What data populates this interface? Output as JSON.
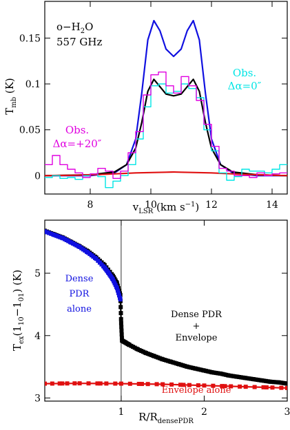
{
  "chart_data": [
    {
      "type": "line",
      "xlim": [
        6.5,
        14.5
      ],
      "ylim": [
        -0.02,
        0.19
      ],
      "xticks": [
        8,
        10,
        12,
        14
      ],
      "xtick_labels": [
        "8",
        "10",
        "12",
        "14"
      ],
      "yticks": [
        0,
        0.05,
        0.1,
        0.15
      ],
      "ytick_labels": [
        "0",
        "0.05",
        "0.1",
        "0.15"
      ],
      "xlabel": "v",
      "xlabel_sub": "LSR",
      "xlabel_unit": " (km s",
      "xlabel_unit_sup": "−1",
      "xlabel_close": ")",
      "ylabel": "T",
      "ylabel_sub": "mb",
      "ylabel_unit": " (K)",
      "annotation": {
        "line1": "o−H",
        "sub": "2",
        "line1_end": "O",
        "line2": "557 GHz"
      },
      "labels": {
        "obs0": {
          "line1": "Obs.",
          "line2": "Δα=0″",
          "color": "#00e5e5"
        },
        "obs20": {
          "line1": "Obs.",
          "line2": "Δα=+20″",
          "color": "#e000e0"
        }
      },
      "series": [
        {
          "color": "#1010e0",
          "x": [
            6.5,
            8,
            8.8,
            9.2,
            9.5,
            9.7,
            9.9,
            10.1,
            10.3,
            10.5,
            10.75,
            11.0,
            11.2,
            11.4,
            11.6,
            11.8,
            12.0,
            12.3,
            12.7,
            13.5,
            14.5
          ],
          "y": [
            0.0,
            0.0,
            0.003,
            0.012,
            0.04,
            0.09,
            0.148,
            0.169,
            0.158,
            0.138,
            0.13,
            0.138,
            0.158,
            0.169,
            0.148,
            0.09,
            0.04,
            0.012,
            0.003,
            0.0,
            0.0
          ]
        },
        {
          "color": "#000000",
          "x": [
            6.5,
            8,
            8.8,
            9.2,
            9.5,
            9.7,
            9.9,
            10.1,
            10.3,
            10.5,
            10.75,
            11.0,
            11.2,
            11.4,
            11.6,
            11.8,
            12.0,
            12.3,
            12.7,
            13.5,
            14.5
          ],
          "y": [
            0.0,
            0.001,
            0.004,
            0.012,
            0.03,
            0.058,
            0.092,
            0.105,
            0.097,
            0.089,
            0.087,
            0.089,
            0.097,
            0.105,
            0.092,
            0.058,
            0.03,
            0.012,
            0.004,
            0.001,
            0.0
          ]
        },
        {
          "color": "#e01010",
          "x": [
            6.5,
            7.5,
            8.5,
            9.5,
            10.5,
            10.75,
            11.0,
            12.0,
            13.0,
            14.0,
            14.5
          ],
          "y": [
            0.0,
            0.0005,
            0.0015,
            0.003,
            0.0038,
            0.004,
            0.0038,
            0.003,
            0.0015,
            0.0005,
            0.0
          ]
        },
        {
          "color": "#00e5e5",
          "step": true,
          "x": [
            6.5,
            6.75,
            7.0,
            7.25,
            7.5,
            7.75,
            8.0,
            8.25,
            8.5,
            8.75,
            9.0,
            9.25,
            9.5,
            9.75,
            10.0,
            10.25,
            10.5,
            10.75,
            11.0,
            11.25,
            11.5,
            11.75,
            12.0,
            12.25,
            12.5,
            12.75,
            13.0,
            13.25,
            13.5,
            13.75,
            14.0,
            14.25
          ],
          "y": [
            -0.002,
            0.0,
            -0.003,
            -0.002,
            -0.004,
            0.0,
            0.002,
            -0.001,
            -0.013,
            -0.006,
            0.0,
            0.012,
            0.04,
            0.075,
            0.098,
            0.1,
            0.09,
            0.092,
            0.1,
            0.095,
            0.085,
            0.05,
            0.027,
            0.003,
            -0.005,
            -0.001,
            0.007,
            0.005,
            0.005,
            0.003,
            0.007,
            0.012
          ]
        },
        {
          "color": "#e000e0",
          "step": true,
          "x": [
            6.5,
            6.75,
            7.0,
            7.25,
            7.5,
            7.75,
            8.0,
            8.25,
            8.5,
            8.75,
            9.0,
            9.25,
            9.5,
            9.75,
            10.0,
            10.25,
            10.5,
            10.75,
            11.0,
            11.25,
            11.5,
            11.75,
            12.0,
            12.25,
            12.5,
            12.75,
            13.0,
            13.25,
            13.5,
            13.75,
            14.0,
            14.25
          ],
          "y": [
            0.012,
            0.022,
            0.012,
            0.007,
            0.003,
            -0.002,
            0.002,
            0.008,
            0.005,
            -0.003,
            0.005,
            0.025,
            0.048,
            0.088,
            0.11,
            0.113,
            0.098,
            0.09,
            0.108,
            0.098,
            0.082,
            0.056,
            0.032,
            0.008,
            0.005,
            0.0,
            0.0,
            -0.002,
            0.003,
            0.0,
            0.002,
            0.003
          ]
        }
      ]
    },
    {
      "type": "line",
      "xlim": [
        0.08,
        3.0
      ],
      "ylim": [
        2.95,
        5.85
      ],
      "xticks": [
        1,
        2,
        3
      ],
      "xtick_labels": [
        "1",
        "2",
        "3"
      ],
      "yticks": [
        3,
        4,
        5
      ],
      "ytick_labels": [
        "3",
        "4",
        "5"
      ],
      "vline": 1.0,
      "xlabel": "R/R",
      "xlabel_sub": "densePDR",
      "ylabel": "T",
      "ylabel_sub": "ex",
      "ylabel_mid": "(1",
      "ylabel_mid_sub": "10",
      "ylabel_dash": "−1",
      "ylabel_dash_sub": "01",
      "ylabel_unit": ") (K)",
      "labels": {
        "dense": {
          "lines": [
            "Dense",
            "PDR",
            "alone"
          ],
          "color": "#1010e0"
        },
        "combo": {
          "lines": [
            "Dense PDR",
            "+",
            "Envelope"
          ],
          "color": "#000000"
        },
        "env": {
          "text": "Envelope alone",
          "color": "#e01010"
        }
      },
      "series": [
        {
          "color": "#000000",
          "x": [
            0.08,
            0.2,
            0.3,
            0.4,
            0.5,
            0.6,
            0.7,
            0.8,
            0.9,
            0.95,
            0.99,
            1.0,
            1.01,
            1.05,
            1.1,
            1.2,
            1.3,
            1.4,
            1.5,
            1.6,
            1.7,
            1.8,
            1.9,
            2.0,
            2.1,
            2.2,
            2.3,
            2.4,
            2.5,
            2.6,
            2.7,
            2.8,
            2.9,
            3.0
          ],
          "y": [
            5.68,
            5.62,
            5.57,
            5.5,
            5.43,
            5.35,
            5.25,
            5.13,
            4.96,
            4.84,
            4.65,
            4.2,
            3.92,
            3.89,
            3.85,
            3.78,
            3.72,
            3.67,
            3.62,
            3.58,
            3.54,
            3.5,
            3.47,
            3.44,
            3.41,
            3.39,
            3.36,
            3.34,
            3.32,
            3.3,
            3.28,
            3.26,
            3.25,
            3.23
          ]
        },
        {
          "color": "#1010e0",
          "x": [
            0.08,
            0.2,
            0.3,
            0.4,
            0.5,
            0.6,
            0.7,
            0.8,
            0.85,
            0.9,
            0.95,
            0.99
          ],
          "y": [
            5.67,
            5.61,
            5.56,
            5.49,
            5.42,
            5.33,
            5.23,
            5.09,
            5.0,
            4.9,
            4.76,
            4.58
          ]
        },
        {
          "color": "#e01010",
          "x": [
            0.08,
            0.5,
            1.0,
            1.5,
            2.0,
            2.5,
            3.0
          ],
          "y": [
            3.23,
            3.235,
            3.23,
            3.22,
            3.2,
            3.18,
            3.16
          ]
        }
      ]
    }
  ]
}
